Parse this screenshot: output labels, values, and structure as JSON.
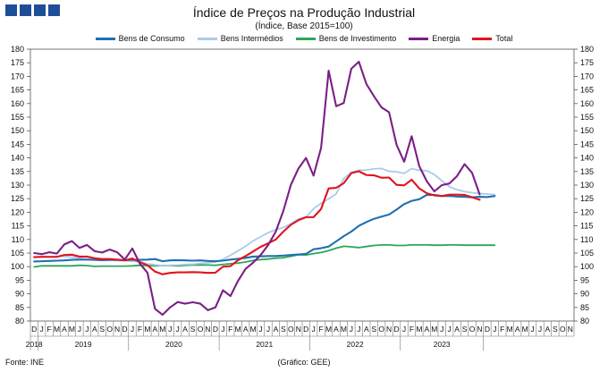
{
  "title": "Índice de Preços na Produção Industrial",
  "subtitle": "(Índice, Base 2015=100)",
  "source": "Fonte: INE",
  "credit": "(Gráfico: GEE)",
  "colors": {
    "consumo": "#1f6fb0",
    "intermedios": "#a9cbea",
    "investimento": "#2ca65a",
    "energia": "#7b1f86",
    "total": "#e0141e",
    "logo": "#1f4e99"
  },
  "chart_data": {
    "type": "line",
    "title": "Índice de Preços na Produção Industrial",
    "subtitle": "(Índice, Base 2015=100)",
    "ylim": [
      80,
      180
    ],
    "yticks": [
      80,
      85,
      90,
      95,
      100,
      105,
      110,
      115,
      120,
      125,
      130,
      135,
      140,
      145,
      150,
      155,
      160,
      165,
      170,
      175,
      180
    ],
    "y_axes": "left-and-right",
    "grid": false,
    "legend_placement": "top",
    "x_month_labels": [
      "D",
      "J",
      "F",
      "M",
      "A",
      "M",
      "J",
      "J",
      "A",
      "S",
      "O",
      "N",
      "D",
      "J",
      "F",
      "M",
      "A",
      "M",
      "J",
      "J",
      "A",
      "S",
      "O",
      "N",
      "D",
      "J",
      "F",
      "M",
      "A",
      "M",
      "J",
      "J",
      "A",
      "S",
      "O",
      "N",
      "D",
      "J",
      "F",
      "M",
      "A",
      "M",
      "J",
      "J",
      "A",
      "S",
      "O",
      "N",
      "D",
      "J",
      "F",
      "M",
      "A",
      "M",
      "J",
      "J",
      "A",
      "S",
      "O",
      "N",
      "D",
      "J",
      "F",
      "M",
      "A",
      "M",
      "J",
      "J",
      "A",
      "S",
      "O",
      "N"
    ],
    "x_year_labels": [
      {
        "label": "2018",
        "start": 0,
        "end": 0
      },
      {
        "label": "2019",
        "start": 1,
        "end": 12
      },
      {
        "label": "2020",
        "start": 13,
        "end": 24
      },
      {
        "label": "2021",
        "start": 25,
        "end": 36
      },
      {
        "label": "2022",
        "start": 37,
        "end": 48
      },
      {
        "label": "2023",
        "start": 49,
        "end": 59
      }
    ],
    "series": [
      {
        "name": "Bens de Consumo",
        "key": "consumo",
        "values": [
          101.9,
          102.0,
          102.1,
          102.2,
          102.3,
          102.5,
          102.6,
          102.6,
          102.5,
          102.4,
          102.5,
          102.5,
          102.4,
          102.5,
          102.5,
          102.6,
          102.8,
          102.0,
          102.3,
          102.4,
          102.3,
          102.2,
          102.3,
          102.1,
          102.0,
          102.2,
          102.6,
          102.9,
          103.2,
          103.7,
          103.8,
          103.9,
          103.9,
          104.1,
          104.3,
          104.5,
          104.7,
          106.4,
          106.8,
          107.4,
          109.3,
          111.2,
          112.9,
          115.0,
          116.4,
          117.6,
          118.4,
          119.2,
          121.0,
          123.0,
          124.2,
          124.8,
          126.4,
          126.4,
          126.0,
          126.0,
          125.8,
          125.7,
          125.5,
          125.7,
          125.6,
          126.0
        ]
      },
      {
        "name": "Bens Intermédios",
        "key": "intermedios",
        "values": [
          103.5,
          103.8,
          103.6,
          103.8,
          103.8,
          103.5,
          103.1,
          102.7,
          102.5,
          102.3,
          102.4,
          102.2,
          102.2,
          102.0,
          101.8,
          101.0,
          100.7,
          100.3,
          100.5,
          100.6,
          100.8,
          100.9,
          101.2,
          101.4,
          101.7,
          102.7,
          104.2,
          105.8,
          107.5,
          109.5,
          111.0,
          112.5,
          113.6,
          114.4,
          115.8,
          117.6,
          118.2,
          121.3,
          123.3,
          124.9,
          126.8,
          132.4,
          134.7,
          135.5,
          135.5,
          136.0,
          136.1,
          135.1,
          134.9,
          134.3,
          136.1,
          135.4,
          135.3,
          133.9,
          131.6,
          129.4,
          128.3,
          127.6,
          127.2,
          126.9,
          126.7,
          126.5
        ]
      },
      {
        "name": "Bens de Investimento",
        "key": "investimento",
        "values": [
          99.9,
          100.3,
          100.3,
          100.3,
          100.3,
          100.3,
          100.5,
          100.4,
          100.1,
          100.2,
          100.2,
          100.2,
          100.2,
          100.3,
          100.5,
          100.4,
          100.3,
          100.4,
          100.4,
          100.3,
          100.5,
          100.6,
          100.6,
          100.6,
          100.5,
          100.8,
          101.1,
          101.3,
          101.7,
          102.3,
          102.6,
          102.8,
          103.1,
          103.3,
          103.8,
          104.4,
          104.3,
          104.8,
          105.2,
          105.9,
          106.8,
          107.5,
          107.3,
          107.0,
          107.4,
          107.8,
          108.0,
          108.0,
          107.8,
          107.8,
          108.0,
          108.0,
          108.0,
          107.9,
          107.9,
          108.0,
          108.0,
          107.9,
          107.9,
          107.9,
          107.9,
          107.9
        ]
      },
      {
        "name": "Energia",
        "key": "energia",
        "values": [
          105.0,
          104.6,
          105.3,
          104.8,
          108.2,
          109.4,
          106.9,
          108.0,
          105.7,
          105.2,
          106.3,
          105.3,
          102.6,
          106.7,
          101.1,
          97.8,
          84.5,
          82.3,
          85.0,
          87.0,
          86.4,
          86.9,
          86.4,
          84.0,
          85.0,
          91.3,
          89.2,
          94.8,
          99.2,
          101.5,
          104.3,
          108.0,
          112.9,
          120.5,
          130.1,
          136.1,
          140.0,
          133.5,
          143.7,
          172.1,
          159.0,
          160.2,
          172.8,
          175.4,
          167.2,
          162.7,
          158.6,
          156.8,
          144.8,
          138.6,
          148.0,
          137.0,
          131.4,
          127.7,
          130.0,
          130.6,
          133.3,
          137.7,
          134.5,
          126.6
        ]
      },
      {
        "name": "Total",
        "key": "total",
        "values": [
          103.5,
          103.6,
          103.6,
          103.6,
          104.3,
          104.4,
          103.7,
          103.7,
          103.1,
          102.8,
          102.8,
          102.6,
          102.3,
          103.0,
          101.7,
          100.5,
          98.2,
          97.2,
          97.7,
          97.9,
          97.9,
          98.0,
          97.9,
          97.7,
          97.8,
          100.0,
          100.2,
          102.4,
          103.9,
          105.6,
          107.3,
          108.6,
          110.0,
          112.9,
          115.4,
          117.1,
          118.2,
          118.2,
          121.2,
          128.8,
          129.0,
          130.7,
          134.4,
          135.1,
          133.7,
          133.6,
          132.7,
          132.8,
          130.1,
          129.9,
          132.0,
          128.8,
          127.0,
          126.2,
          126.0,
          126.5,
          126.5,
          126.4,
          125.5,
          124.6
        ]
      }
    ]
  }
}
